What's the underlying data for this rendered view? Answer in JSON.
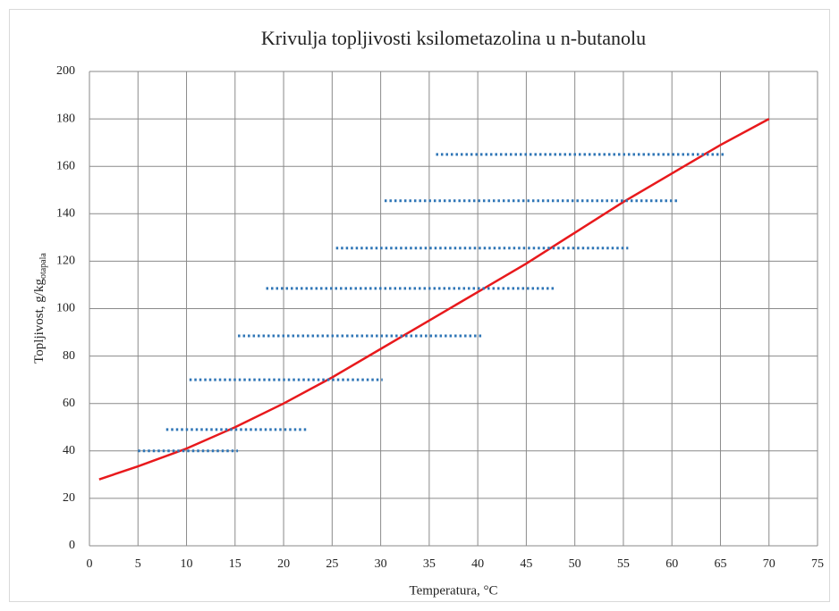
{
  "chart_data": {
    "type": "line",
    "title": "Krivulja topljivosti ksilometazolina u n-butanolu",
    "x_label": "Temperatura, °C",
    "y_label": "Topljivost, g/kg",
    "y_label_sub": "otapala",
    "xlim": [
      0,
      75
    ],
    "xticks": [
      0,
      5,
      10,
      15,
      20,
      25,
      30,
      35,
      40,
      45,
      50,
      55,
      60,
      65,
      70,
      75
    ],
    "ylim": [
      0,
      200
    ],
    "yticks": [
      0,
      20,
      40,
      60,
      80,
      100,
      120,
      140,
      160,
      180,
      200
    ],
    "grid": true,
    "series": [
      {
        "color": "#e8191c",
        "style": "solid",
        "x": [
          1,
          5,
          10,
          15,
          20,
          25,
          30,
          35,
          40,
          45,
          50,
          55,
          60,
          65,
          70
        ],
        "values": [
          28,
          33.5,
          41,
          50,
          60,
          71,
          83,
          95,
          107,
          119,
          132,
          145,
          157,
          169,
          180
        ]
      },
      {
        "color": "#2e75b6",
        "style": "dotted",
        "x": [
          5,
          15.3
        ],
        "values": [
          40,
          40
        ]
      },
      {
        "color": "#2e75b6",
        "style": "dotted",
        "x": [
          7.9,
          22.4
        ],
        "values": [
          49,
          49
        ]
      },
      {
        "color": "#2e75b6",
        "style": "dotted",
        "x": [
          10.3,
          30.2
        ],
        "values": [
          70,
          70
        ]
      },
      {
        "color": "#2e75b6",
        "style": "dotted",
        "x": [
          15.3,
          40.6
        ],
        "values": [
          88.5,
          88.5
        ]
      },
      {
        "color": "#2e75b6",
        "style": "dotted",
        "x": [
          18.2,
          48.1
        ],
        "values": [
          108.5,
          108.5
        ]
      },
      {
        "color": "#2e75b6",
        "style": "dotted",
        "x": [
          25.4,
          55.5
        ],
        "values": [
          125.5,
          125.5
        ]
      },
      {
        "color": "#2e75b6",
        "style": "dotted",
        "x": [
          30.4,
          60.6
        ],
        "values": [
          145.5,
          145.5
        ]
      },
      {
        "color": "#2e75b6",
        "style": "dotted",
        "x": [
          35.7,
          65.6
        ],
        "values": [
          165,
          165
        ]
      }
    ]
  }
}
